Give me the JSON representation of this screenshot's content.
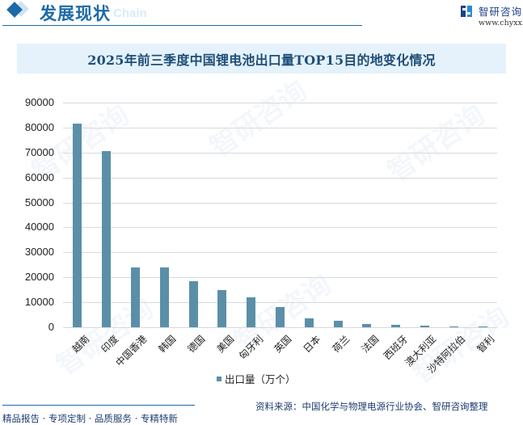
{
  "header": {
    "section_title": "发展现状",
    "ghost_text": "Chain",
    "brand_name": "智研咨询",
    "brand_url": "www.chyxx.com"
  },
  "chart_title": "2025年前三季度中国锂电池出口量TOP15目的地变化情况",
  "legend": {
    "label": "出口量（万个）",
    "color": "#5b8fa8"
  },
  "footer": {
    "source": "资料来源：中国化学与物理电源行业协会、智研咨询整理",
    "slogan": "精品报告 · 专项定制 · 品质服务 · 专精特新"
  },
  "watermark": "智研咨询",
  "y_ticks": [
    "90000",
    "80000",
    "70000",
    "60000",
    "50000",
    "40000",
    "30000",
    "20000",
    "10000",
    "0"
  ],
  "categories": [
    "越南",
    "印度",
    "中国香港",
    "韩国",
    "德国",
    "美国",
    "匈牙利",
    "英国",
    "日本",
    "荷兰",
    "法国",
    "西班牙",
    "澳大利亚",
    "沙特阿拉伯",
    "智利"
  ],
  "chart_data": {
    "type": "bar",
    "title": "2025年前三季度中国锂电池出口量TOP15目的地变化情况",
    "categories": [
      "越南",
      "印度",
      "中国香港",
      "韩国",
      "德国",
      "美国",
      "匈牙利",
      "英国",
      "日本",
      "荷兰",
      "法国",
      "西班牙",
      "澳大利亚",
      "沙特阿拉伯",
      "智利"
    ],
    "series": [
      {
        "name": "出口量（万个）",
        "color": "#5b8fa8",
        "values": [
          81700,
          70700,
          24000,
          24000,
          18500,
          14900,
          12000,
          8100,
          3500,
          2500,
          1200,
          900,
          550,
          350,
          300
        ]
      }
    ],
    "xlabel": "",
    "ylabel": "",
    "ylim": [
      0,
      90000
    ],
    "y_ticks": [
      0,
      10000,
      20000,
      30000,
      40000,
      50000,
      60000,
      70000,
      80000,
      90000
    ],
    "grid": true,
    "legend_position": "bottom"
  }
}
